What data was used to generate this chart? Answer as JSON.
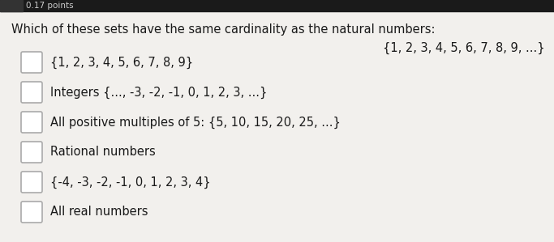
{
  "bg_color": "#f2f0ed",
  "header_text": "Which of these sets have the same cardinality as the natural numbers:",
  "natural_numbers_label": "{1, 2, 3, 4, 5, 6, 7, 8, 9, ...}",
  "options": [
    "{1, 2, 3, 4, 5, 6, 7, 8, 9}",
    "Integers {..., -3, -2, -1, 0, 1, 2, 3, ...}",
    "All positive multiples of 5: {5, 10, 15, 20, 25, ...}",
    "Rational numbers",
    "{-4, -3, -2, -1, 0, 1, 2, 3, 4}",
    "All real numbers"
  ],
  "text_color": "#1a1a1a",
  "header_fontsize": 10.5,
  "option_fontsize": 10.5,
  "natural_label_fontsize": 10.5,
  "top_label": "0.17 points",
  "top_bar_color": "#1a1a1a",
  "top_label_color": "#cccccc",
  "checkbox_edge_color": "#aaaaaa",
  "checkbox_face_color": "#ffffff"
}
